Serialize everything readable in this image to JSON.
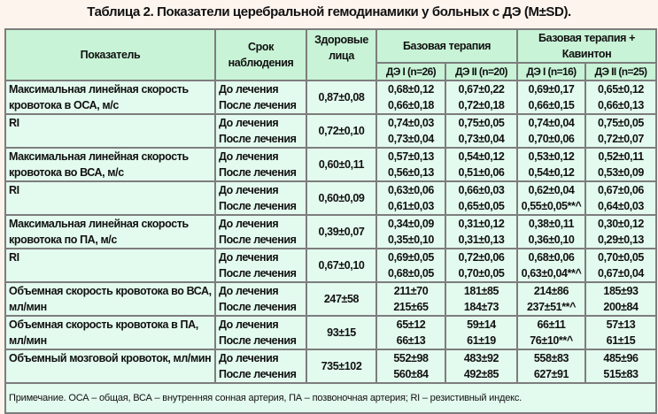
{
  "title": "Таблица 2. Показатели церебральной гемодинамики у больных с ДЭ (M±SD).",
  "header": {
    "indicator": "Показатель",
    "period": "Срок наблюдения",
    "healthy": "Здоровые лица",
    "group1": "Базовая терапия",
    "group2": "Базовая терапия + Кавинтон",
    "sub": [
      "ДЭ I (n=26)",
      "ДЭ II (n=20)",
      "ДЭ I (n=16)",
      "ДЭ II (n=25)"
    ]
  },
  "periods": [
    "До лечения",
    "После лечения"
  ],
  "rows": [
    {
      "label": "Максимальная линейная скорость кровотока в ОСА, м/с",
      "healthy": "0,87±0,08",
      "before": [
        "0,68±0,12",
        "0,67±0,22",
        "0,69±0,17",
        "0,65±0,12"
      ],
      "after": [
        "0,66±0,18",
        "0,72±0,18",
        "0,66±0,15",
        "0,66±0,13"
      ]
    },
    {
      "label": "RI",
      "healthy": "0,72±0,10",
      "before": [
        "0,74±0,03",
        "0,75±0,05",
        "0,74±0,04",
        "0,75±0,05"
      ],
      "after": [
        "0,73±0,04",
        "0,73±0,04",
        "0,70±0,06",
        "0,72±0,07"
      ]
    },
    {
      "label": "Максимальная линейная скорость кровотока во ВСА, м/с",
      "healthy": "0,60±0,11",
      "before": [
        "0,57±0,13",
        "0,54±0,12",
        "0,53±0,12",
        "0,52±0,11"
      ],
      "after": [
        "0,56±0,13",
        "0,51±0,06",
        "0,54±0,12",
        "0,53±0,09"
      ]
    },
    {
      "label": "RI",
      "healthy": "0,60±0,09",
      "before": [
        "0,63±0,06",
        "0,66±0,03",
        "0,62±0,04",
        "0,67±0,06"
      ],
      "after": [
        "0,61±0,03",
        "0,65±0,05",
        "0,55±0,05**^",
        "0,64±0,03"
      ]
    },
    {
      "label": "Максимальная линейная скорость кровотока по ПА, м/с",
      "healthy": "0,39±0,07",
      "before": [
        "0,34±0,09",
        "0,31±0,12",
        "0,38±0,11",
        "0,30±0,12"
      ],
      "after": [
        "0,35±0,10",
        "0,31±0,13",
        "0,36±0,10",
        "0,29±0,13"
      ]
    },
    {
      "label": "RI",
      "healthy": "0,67±0,10",
      "before": [
        "0,69±0,05",
        "0,72±0,06",
        "0,68±0,06",
        "0,70±0,05"
      ],
      "after": [
        "0,68±0,05",
        "0,70±0,05",
        "0,63±0,04**^",
        "0,67±0,04"
      ]
    },
    {
      "label": "Объемная скорость кровотока во ВСА, мл/мин",
      "healthy": "247±58",
      "before": [
        "211±70",
        "181±85",
        "214±86",
        "185±93"
      ],
      "after": [
        "215±65",
        "184±73",
        "237±51**^",
        "200±84"
      ]
    },
    {
      "label": "Объемная скорость кровотока в ПА, мл/мин",
      "healthy": "93±15",
      "before": [
        "65±12",
        "59±14",
        "66±11",
        "57±13"
      ],
      "after": [
        "66±13",
        "61±19",
        "76±10**^",
        "61±15"
      ]
    },
    {
      "label": "Объемный мозговой кровоток, мл/мин",
      "healthy": "735±102",
      "before": [
        "552±98",
        "483±92",
        "558±83",
        "485±96"
      ],
      "after": [
        "560±84",
        "492±85",
        "627±91",
        "515±83"
      ]
    }
  ],
  "note": "Примечание. ОСА – общая, ВСА – внутренняя сонная артерия, ПА – позвоночная артерия; RI – резистивный индекс."
}
